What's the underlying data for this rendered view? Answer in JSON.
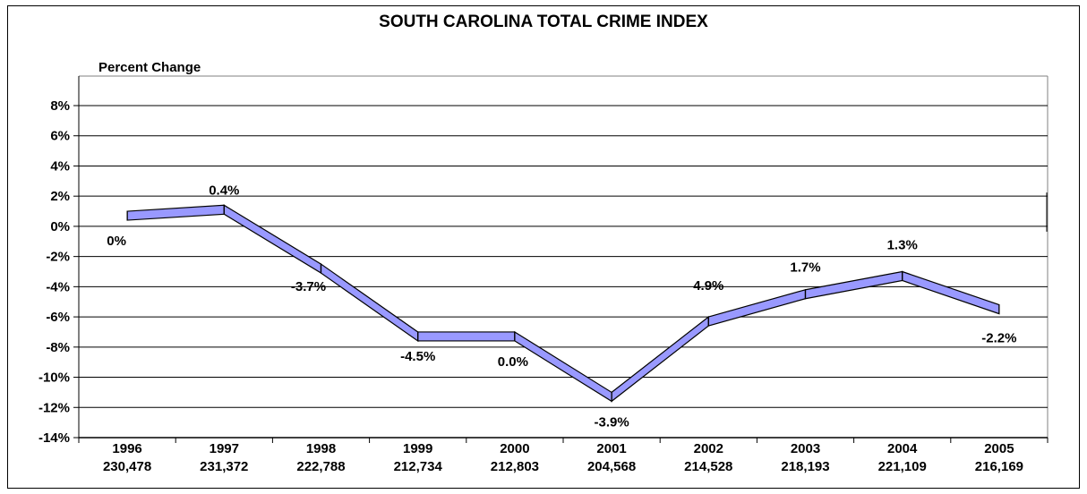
{
  "chart_data": {
    "type": "line",
    "title": "SOUTH CAROLINA TOTAL CRIME INDEX",
    "ylabel": "Percent Change",
    "xlabel": "",
    "categories": [
      "1996",
      "1997",
      "1998",
      "1999",
      "2000",
      "2001",
      "2002",
      "2003",
      "2004",
      "2005"
    ],
    "totals": [
      "230,478",
      "231,372",
      "222,788",
      "212,734",
      "212,803",
      "204,568",
      "214,528",
      "218,193",
      "221,109",
      "216,169"
    ],
    "y_ticks": [
      "8%",
      "6%",
      "4%",
      "2%",
      "0%",
      "-2%",
      "-4%",
      "-6%",
      "-8%",
      "-10%",
      "-12%",
      "-14%"
    ],
    "y_tick_values": [
      8,
      6,
      4,
      2,
      0,
      -2,
      -4,
      -6,
      -8,
      -10,
      -12,
      -14
    ],
    "ylim": [
      -14,
      8
    ],
    "grid": true,
    "legend": "none",
    "series": [
      {
        "values": [
          1.0,
          1.4,
          -2.5,
          -7.0,
          -7.0,
          -11.0,
          -6.0,
          -4.2,
          -3.0,
          -5.2
        ],
        "labels": [
          "0%",
          "0.4%",
          "-3.7%",
          "-4.5%",
          "0.0%",
          "-3.9%",
          "4.9%",
          "1.7%",
          "1.3%",
          "-2.2%"
        ]
      }
    ],
    "colors": {
      "ribbon_fill": "#9999ff",
      "ribbon_stroke": "#000000"
    }
  }
}
